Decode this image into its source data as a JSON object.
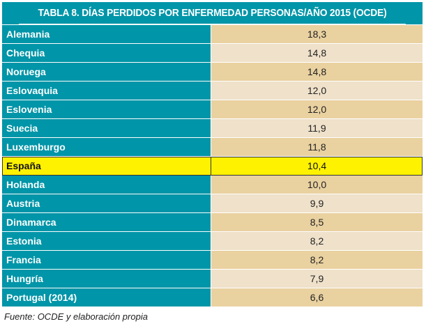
{
  "title": "TABLA 8. DÍAS PERDIDOS POR ENFERMEDAD PERSONAS/AÑO 2015 (OCDE)",
  "colors": {
    "teal": "#0095a8",
    "highlight": "#fff200",
    "row_odd": "#e9d1a0",
    "row_even": "#efe1ca"
  },
  "rows": [
    {
      "country": "Alemania",
      "value": "18,3"
    },
    {
      "country": "Chequia",
      "value": "14,8"
    },
    {
      "country": "Noruega",
      "value": "14,8"
    },
    {
      "country": "Eslovaquia",
      "value": "12,0"
    },
    {
      "country": "Eslovenia",
      "value": "12,0"
    },
    {
      "country": "Suecia",
      "value": "11,9"
    },
    {
      "country": "Luxemburgo",
      "value": "11,8"
    },
    {
      "country": "España",
      "value": "10,4",
      "highlighted": true
    },
    {
      "country": "Holanda",
      "value": "10,0"
    },
    {
      "country": "Austria",
      "value": "9,9"
    },
    {
      "country": "Dinamarca",
      "value": "8,5"
    },
    {
      "country": "Estonia",
      "value": "8,2"
    },
    {
      "country": "Francia",
      "value": "8,2"
    },
    {
      "country": "Hungría",
      "value": "7,9"
    },
    {
      "country": "Portugal (2014)",
      "value": "6,6"
    }
  ],
  "source": "Fuente: OCDE y elaboración propia"
}
